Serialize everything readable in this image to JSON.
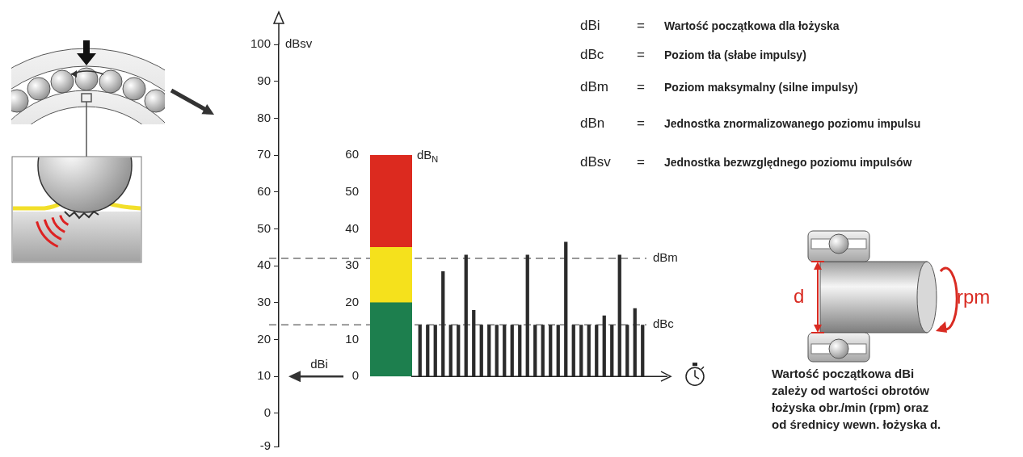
{
  "chart_data": [
    {
      "type": "axis",
      "ylabel": "dBsv",
      "ylim": [
        -9,
        100
      ],
      "yticks": [
        -9,
        0,
        10,
        20,
        30,
        40,
        50,
        60,
        70,
        80,
        90,
        100
      ],
      "reference_lines": [
        {
          "value": 42,
          "label": "dBm"
        },
        {
          "value": 24,
          "label": "dBc"
        }
      ],
      "start_value": {
        "value": 10,
        "label": "dBi"
      }
    },
    {
      "type": "bar",
      "stacked": true,
      "ylabel": "dBN",
      "ylim": [
        0,
        60
      ],
      "yticks": [
        0,
        10,
        20,
        30,
        40,
        50,
        60
      ],
      "categories": [
        null
      ],
      "series": [
        {
          "values": [
            20
          ],
          "color": "#1d7f4e"
        },
        {
          "values": [
            15
          ],
          "color": "#f5e11c"
        },
        {
          "values": [
            25
          ],
          "color": "#dc2a1f"
        }
      ]
    },
    {
      "type": "bar",
      "tick_labels": false,
      "ylim": [
        0,
        60
      ],
      "color": "#2b2b2b",
      "categories": [
        null,
        null,
        null,
        null,
        null,
        null,
        null,
        null,
        null,
        null,
        null,
        null,
        null,
        null,
        null,
        null,
        null,
        null,
        null,
        null,
        null,
        null,
        null,
        null,
        null,
        null,
        null,
        null,
        null,
        null
      ],
      "values": [
        14,
        14,
        14,
        28.5,
        14,
        14,
        33,
        18,
        14,
        14,
        14,
        14,
        14,
        14,
        33,
        14,
        14,
        14,
        14,
        36.5,
        14,
        14,
        14,
        14,
        16.5,
        14,
        33,
        14,
        18.5,
        14
      ]
    }
  ],
  "definitions": {
    "separator": "=",
    "rows": [
      {
        "symbol": "dBi",
        "text": "Wartość początkowa dla łożyska"
      },
      {
        "symbol": "dBc",
        "text": "Poziom tła (słabe impulsy)"
      },
      {
        "symbol": "dBm",
        "text": "Poziom maksymalny (silne impulsy)"
      },
      {
        "symbol": "dBn",
        "text": "Jednostka znormalizowanego poziomu impulsu"
      },
      {
        "symbol": "dBsv",
        "text": "Jednostka bezwzględnego poziomu impulsów"
      }
    ]
  },
  "bearing_figure": {
    "diameter_label": "d",
    "speed_label": "rpm",
    "caption": [
      "Wartość początkowa dBi",
      "zależy od wartości obrotów",
      "łożyska obr./min (rpm) oraz",
      "od średnicy wewn. łożyska d."
    ]
  }
}
